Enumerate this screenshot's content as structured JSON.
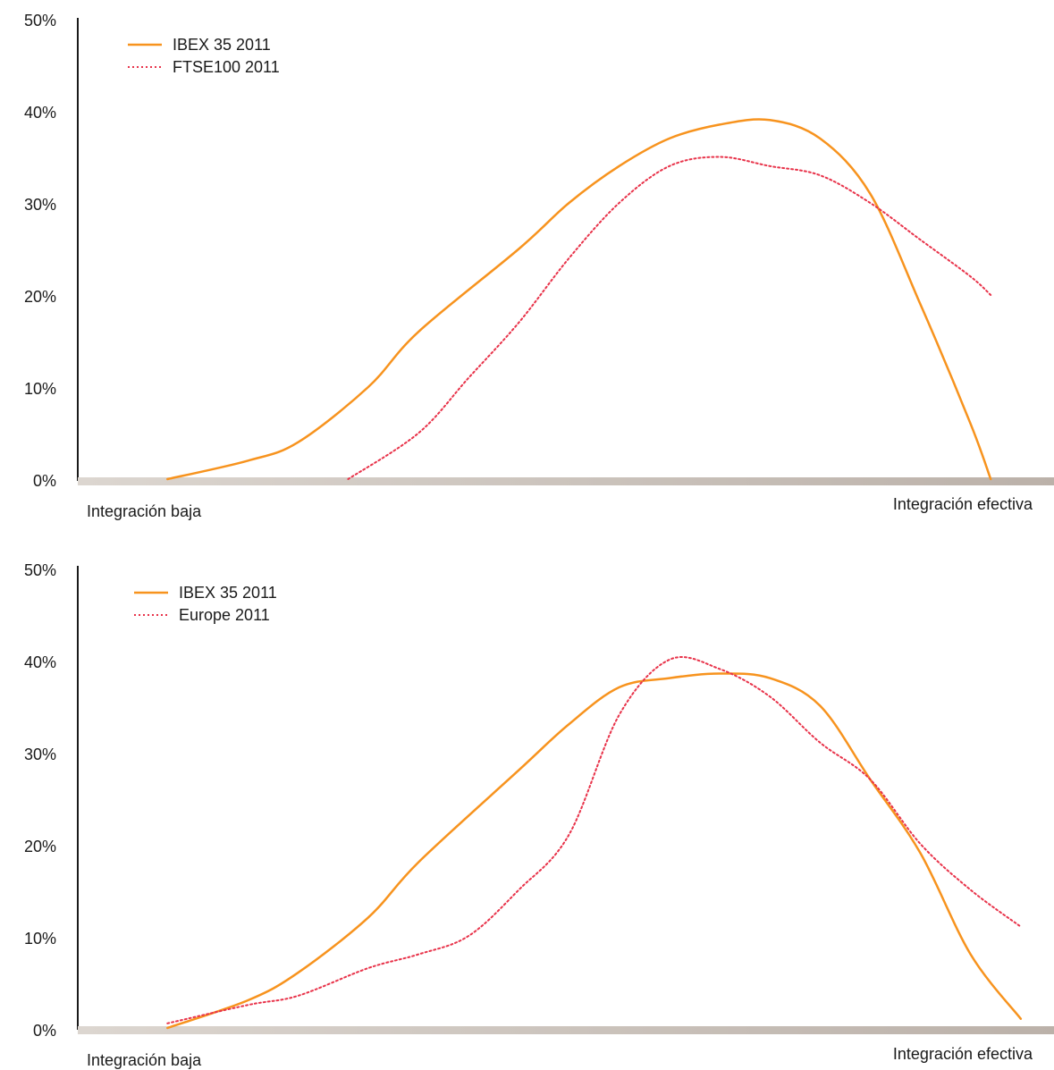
{
  "chart_data": [
    {
      "type": "line",
      "y_ticks": [
        "0%",
        "10%",
        "20%",
        "30%",
        "40%",
        "50%"
      ],
      "ylim": [
        0,
        50
      ],
      "x_start_label": "Integración baja",
      "x_end_label": "Integración efectiva",
      "legend_position": "top-left",
      "grid": false,
      "series": [
        {
          "name": "IBEX 35 2011",
          "style": "solid",
          "color": "#F7931E",
          "points": [
            [
              1,
              0
            ],
            [
              1.8,
              2
            ],
            [
              2.3,
              4
            ],
            [
              3,
              10
            ],
            [
              3.5,
              16
            ],
            [
              4.5,
              25
            ],
            [
              5,
              30
            ],
            [
              5.5,
              34
            ],
            [
              6,
              37
            ],
            [
              6.5,
              38.5
            ],
            [
              7,
              39
            ],
            [
              7.5,
              37
            ],
            [
              8,
              31
            ],
            [
              8.5,
              19
            ],
            [
              9,
              6
            ],
            [
              9.2,
              0
            ]
          ]
        },
        {
          "name": "FTSE100 2011",
          "style": "dotted",
          "color": "#E8334A",
          "points": [
            [
              2.8,
              0
            ],
            [
              3.5,
              5
            ],
            [
              4,
              11
            ],
            [
              4.5,
              17
            ],
            [
              5,
              24
            ],
            [
              5.5,
              30
            ],
            [
              6,
              34
            ],
            [
              6.5,
              35
            ],
            [
              7,
              34
            ],
            [
              7.5,
              33
            ],
            [
              8,
              30
            ],
            [
              8.5,
              26
            ],
            [
              9,
              22
            ],
            [
              9.2,
              20
            ]
          ]
        }
      ]
    },
    {
      "type": "line",
      "y_ticks": [
        "0%",
        "10%",
        "20%",
        "30%",
        "40%",
        "50%"
      ],
      "ylim": [
        0,
        50
      ],
      "x_start_label": "Integración baja",
      "x_end_label": "Integración efectiva",
      "legend_position": "top-left",
      "grid": false,
      "series": [
        {
          "name": "IBEX 35 2011",
          "style": "solid",
          "color": "#F7931E",
          "points": [
            [
              1,
              0
            ],
            [
              1.8,
              3
            ],
            [
              2.3,
              6
            ],
            [
              3,
              12
            ],
            [
              3.5,
              18
            ],
            [
              4.5,
              28
            ],
            [
              5,
              33
            ],
            [
              5.5,
              37
            ],
            [
              6,
              38
            ],
            [
              6.5,
              38.5
            ],
            [
              7,
              38
            ],
            [
              7.5,
              35
            ],
            [
              8,
              27
            ],
            [
              8.5,
              19
            ],
            [
              9,
              8
            ],
            [
              9.5,
              1
            ]
          ]
        },
        {
          "name": "Europe 2011",
          "style": "dotted",
          "color": "#E8334A",
          "points": [
            [
              1,
              0.5
            ],
            [
              1.8,
              2.5
            ],
            [
              2.3,
              3.5
            ],
            [
              3,
              6.5
            ],
            [
              3.5,
              8
            ],
            [
              4,
              10
            ],
            [
              4.5,
              15
            ],
            [
              5,
              21
            ],
            [
              5.5,
              34
            ],
            [
              6,
              40
            ],
            [
              6.5,
              39
            ],
            [
              7,
              36
            ],
            [
              7.5,
              31
            ],
            [
              8,
              27
            ],
            [
              8.5,
              20
            ],
            [
              9,
              15
            ],
            [
              9.5,
              11
            ]
          ]
        }
      ]
    }
  ]
}
